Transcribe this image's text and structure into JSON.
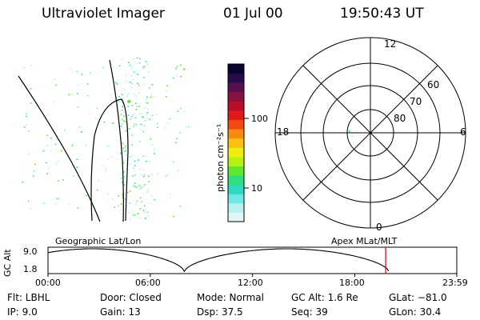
{
  "header": {
    "instrument": "Ultraviolet Imager",
    "date": "01 Jul 00",
    "time": "19:50:43 UT"
  },
  "colorbar": {
    "unit_label": "photon cm⁻²s⁻¹",
    "tick_labels": [
      "100",
      "10"
    ],
    "colors": [
      "#0a0530",
      "#2a0a4a",
      "#5a1050",
      "#8a1040",
      "#b8102a",
      "#e01818",
      "#f24a10",
      "#f78a10",
      "#f8c010",
      "#f0ee10",
      "#b8f010",
      "#60e830",
      "#30e080",
      "#30d8c0",
      "#70e8e8",
      "#b8f0f0",
      "#e0f6f6"
    ]
  },
  "polar_plot": {
    "hour_labels": [
      "12",
      "18",
      "6",
      "0"
    ],
    "lat_labels": [
      "60",
      "70",
      "80"
    ]
  },
  "timeline": {
    "left_label": "Geographic Lat/Lon",
    "right_label": "Apex MLat/MLT",
    "axis_title": "GC Alt",
    "y_labels": [
      "9.0",
      "1.8"
    ],
    "x_labels": [
      "00:00",
      "06:00",
      "12:00",
      "18:00",
      "23:59"
    ],
    "current_time_fraction": 0.826,
    "marker_color": "#cc0000"
  },
  "info": {
    "flt": "Flt: LBHL",
    "ip": "IP: 9.0",
    "door": "Door: Closed",
    "gain": "Gain: 13",
    "mode": "Mode: Normal",
    "dsp": "Dsp: 37.5",
    "gcalt": "GC Alt: 1.6 Re",
    "seq": "Seq: 39",
    "glat": "GLat: −81.0",
    "glon": "GLon: 30.4"
  }
}
